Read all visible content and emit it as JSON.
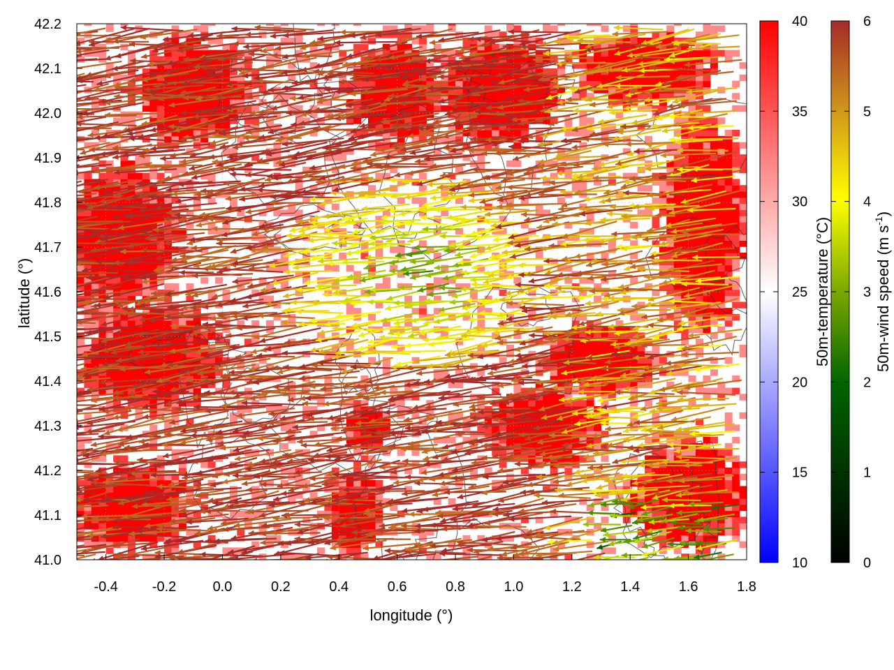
{
  "chart_data": {
    "type": "heatmap",
    "title": "",
    "xlabel": "longitude (°)",
    "ylabel": "latitude (°)",
    "xlim": [
      -0.5,
      1.8
    ],
    "ylim": [
      41.0,
      42.2
    ],
    "xticks": [
      "-0.4",
      "-0.2",
      "0.0",
      "0.2",
      "0.4",
      "0.6",
      "0.8",
      "1.0",
      "1.2",
      "1.4",
      "1.6",
      "1.8"
    ],
    "xtick_values": [
      -0.4,
      -0.2,
      0.0,
      0.2,
      0.4,
      0.6,
      0.8,
      1.0,
      1.2,
      1.4,
      1.6,
      1.8
    ],
    "yticks": [
      "41.0",
      "41.1",
      "41.2",
      "41.3",
      "41.4",
      "41.5",
      "41.6",
      "41.7",
      "41.8",
      "41.9",
      "42.0",
      "42.1",
      "42.2"
    ],
    "ytick_values": [
      41.0,
      41.1,
      41.2,
      41.3,
      41.4,
      41.5,
      41.6,
      41.7,
      41.8,
      41.9,
      42.0,
      42.1,
      42.2
    ],
    "grid": true,
    "temperature_colorbar": {
      "label": "50m-temperature (°C)",
      "range": [
        10,
        40
      ],
      "ticks": [
        "10",
        "15",
        "20",
        "25",
        "30",
        "35",
        "40"
      ],
      "tick_values": [
        10,
        15,
        20,
        25,
        30,
        35,
        40
      ],
      "colors": [
        "#0000ff",
        "#ffffff",
        "#ff0000"
      ]
    },
    "wind_colorbar": {
      "label_main": "50m-wind speed (m s",
      "label_sup": "-1",
      "label_end": ")",
      "range": [
        0,
        6
      ],
      "ticks": [
        "0",
        "1",
        "2",
        "3",
        "4",
        "5",
        "6"
      ],
      "tick_values": [
        0,
        1,
        2,
        3,
        4,
        5,
        6
      ],
      "colors": [
        "#000000",
        "#006400",
        "#ffff00",
        "#a52a2a"
      ]
    },
    "warm_regions": [
      {
        "lon": -0.35,
        "lat": 41.72,
        "rlon": 0.25,
        "rlat": 0.2
      },
      {
        "lon": -0.25,
        "lat": 41.45,
        "rlon": 0.3,
        "rlat": 0.15
      },
      {
        "lon": -0.3,
        "lat": 41.12,
        "rlon": 0.25,
        "rlat": 0.12
      },
      {
        "lon": -0.1,
        "lat": 42.05,
        "rlon": 0.25,
        "rlat": 0.15
      },
      {
        "lon": 0.45,
        "lat": 41.1,
        "rlon": 0.12,
        "rlat": 0.12
      },
      {
        "lon": 0.5,
        "lat": 41.3,
        "rlon": 0.1,
        "rlat": 0.06
      },
      {
        "lon": 0.6,
        "lat": 42.05,
        "rlon": 0.2,
        "rlat": 0.15
      },
      {
        "lon": 0.95,
        "lat": 42.05,
        "rlon": 0.25,
        "rlat": 0.15
      },
      {
        "lon": 1.1,
        "lat": 41.3,
        "rlon": 0.25,
        "rlat": 0.12
      },
      {
        "lon": 1.3,
        "lat": 41.45,
        "rlon": 0.25,
        "rlat": 0.1
      },
      {
        "lon": 1.6,
        "lat": 41.15,
        "rlon": 0.25,
        "rlat": 0.15
      },
      {
        "lon": 1.65,
        "lat": 41.75,
        "rlon": 0.18,
        "rlat": 0.3
      },
      {
        "lon": 1.45,
        "lat": 42.1,
        "rlon": 0.3,
        "rlat": 0.1
      }
    ],
    "wind_regime": {
      "west_strong_speed": 5.8,
      "center_weak_speed": 2.6,
      "center_lon": 0.75,
      "center_lat": 41.65,
      "direction": "easterly"
    }
  }
}
